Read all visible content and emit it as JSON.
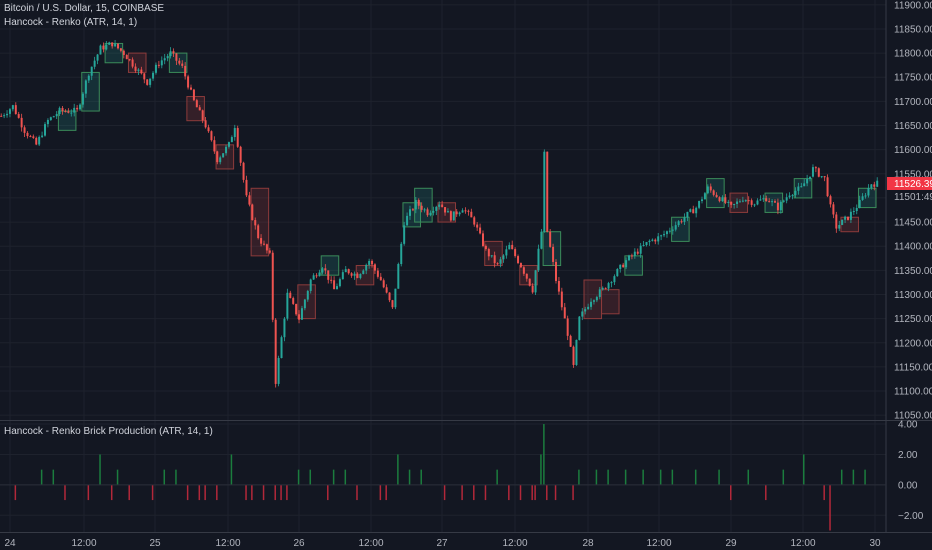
{
  "header": {
    "symbol_line": "Bitcoin / U.S. Dollar, 15, COINBASE",
    "indicator_line": "Hancock - Renko (ATR, 14, 1)"
  },
  "lower_pane": {
    "title": "Hancock - Renko Brick Production (ATR, 14, 1)"
  },
  "price_badges": {
    "last_price": "11526.39",
    "countdown": "11501:49",
    "last_price_color": "#f23645"
  },
  "colors": {
    "background": "#131722",
    "grid": "#1e222d",
    "up": "#26a69a",
    "down": "#ef5350",
    "brick_up": "#2e7d32",
    "brick_down": "#b71c1c",
    "hist_up": "#1b7d3e",
    "hist_down": "#b2283a"
  },
  "chart_data": [
    {
      "type": "candlestick",
      "title": "Bitcoin / U.S. Dollar, 15, COINBASE",
      "x_ticks": [
        "24",
        "12:00",
        "25",
        "12:00",
        "26",
        "12:00",
        "27",
        "12:00",
        "28",
        "12:00",
        "29",
        "12:00",
        "30"
      ],
      "y_ticks": [
        "11900.00",
        "11850.00",
        "11800.00",
        "11750.00",
        "11700.00",
        "11650.00",
        "11600.00",
        "11550.00",
        "11500.00",
        "11450.00",
        "11400.00",
        "11350.00",
        "11300.00",
        "11250.00",
        "11200.00",
        "11150.00",
        "11100.00",
        "11050.00"
      ],
      "ylim": [
        11040,
        11910
      ],
      "grid": true,
      "price_path": [
        [
          0,
          11670
        ],
        [
          4,
          11690
        ],
        [
          8,
          11640
        ],
        [
          12,
          11610
        ],
        [
          16,
          11660
        ],
        [
          20,
          11680
        ],
        [
          26,
          11680
        ],
        [
          30,
          11760
        ],
        [
          34,
          11810
        ],
        [
          38,
          11820
        ],
        [
          42,
          11800
        ],
        [
          46,
          11770
        ],
        [
          50,
          11740
        ],
        [
          54,
          11780
        ],
        [
          58,
          11800
        ],
        [
          62,
          11770
        ],
        [
          66,
          11700
        ],
        [
          70,
          11650
        ],
        [
          74,
          11580
        ],
        [
          78,
          11610
        ],
        [
          80,
          11650
        ],
        [
          84,
          11500
        ],
        [
          88,
          11420
        ],
        [
          92,
          11380
        ],
        [
          94,
          11120
        ],
        [
          98,
          11300
        ],
        [
          102,
          11250
        ],
        [
          106,
          11330
        ],
        [
          110,
          11360
        ],
        [
          114,
          11310
        ],
        [
          118,
          11350
        ],
        [
          122,
          11340
        ],
        [
          126,
          11370
        ],
        [
          130,
          11330
        ],
        [
          134,
          11270
        ],
        [
          138,
          11450
        ],
        [
          142,
          11490
        ],
        [
          146,
          11470
        ],
        [
          150,
          11490
        ],
        [
          154,
          11460
        ],
        [
          158,
          11480
        ],
        [
          162,
          11450
        ],
        [
          166,
          11390
        ],
        [
          170,
          11360
        ],
        [
          174,
          11400
        ],
        [
          178,
          11360
        ],
        [
          182,
          11310
        ],
        [
          185,
          11430
        ],
        [
          186,
          11590
        ],
        [
          187,
          11430
        ],
        [
          190,
          11330
        ],
        [
          194,
          11220
        ],
        [
          196,
          11150
        ],
        [
          198,
          11250
        ],
        [
          202,
          11290
        ],
        [
          206,
          11310
        ],
        [
          210,
          11340
        ],
        [
          214,
          11370
        ],
        [
          218,
          11390
        ],
        [
          222,
          11410
        ],
        [
          226,
          11420
        ],
        [
          230,
          11440
        ],
        [
          234,
          11460
        ],
        [
          238,
          11480
        ],
        [
          242,
          11520
        ],
        [
          246,
          11500
        ],
        [
          250,
          11480
        ],
        [
          254,
          11500
        ],
        [
          258,
          11490
        ],
        [
          262,
          11500
        ],
        [
          266,
          11480
        ],
        [
          270,
          11510
        ],
        [
          274,
          11520
        ],
        [
          278,
          11560
        ],
        [
          282,
          11540
        ],
        [
          284,
          11480
        ],
        [
          286,
          11440
        ],
        [
          290,
          11460
        ],
        [
          294,
          11490
        ],
        [
          298,
          11530
        ],
        [
          300,
          11530
        ]
      ],
      "bricks": [
        [
          20,
          11640,
          11680
        ],
        [
          28,
          11680,
          11760
        ],
        [
          36,
          11780,
          11820
        ],
        [
          44,
          11760,
          11800
        ],
        [
          58,
          11760,
          11800
        ],
        [
          64,
          11660,
          11710
        ],
        [
          74,
          11560,
          11610
        ],
        [
          86,
          11380,
          11520
        ],
        [
          102,
          11250,
          11320
        ],
        [
          110,
          11340,
          11380
        ],
        [
          122,
          11320,
          11360
        ],
        [
          138,
          11440,
          11490
        ],
        [
          142,
          11450,
          11520
        ],
        [
          150,
          11450,
          11490
        ],
        [
          166,
          11360,
          11410
        ],
        [
          178,
          11320,
          11360
        ],
        [
          186,
          11360,
          11430
        ],
        [
          200,
          11250,
          11330
        ],
        [
          206,
          11260,
          11310
        ],
        [
          214,
          11340,
          11380
        ],
        [
          230,
          11410,
          11460
        ],
        [
          242,
          11480,
          11540
        ],
        [
          250,
          11470,
          11510
        ],
        [
          262,
          11470,
          11510
        ],
        [
          272,
          11500,
          11540
        ],
        [
          288,
          11430,
          11460
        ],
        [
          294,
          11480,
          11520
        ]
      ]
    },
    {
      "type": "bar",
      "title": "Hancock - Renko Brick Production (ATR, 14, 1)",
      "y_ticks": [
        "4.00",
        "2.00",
        "0.00",
        "−2.00"
      ],
      "ylim": [
        -3.1,
        4.2
      ],
      "values": [
        [
          5,
          -1
        ],
        [
          14,
          1
        ],
        [
          18,
          1
        ],
        [
          22,
          -1
        ],
        [
          30,
          -1
        ],
        [
          34,
          2
        ],
        [
          38,
          -1
        ],
        [
          40,
          1
        ],
        [
          44,
          -1
        ],
        [
          52,
          -1
        ],
        [
          56,
          1
        ],
        [
          60,
          1
        ],
        [
          64,
          -1
        ],
        [
          68,
          -1
        ],
        [
          70,
          -1
        ],
        [
          74,
          -1
        ],
        [
          79,
          2
        ],
        [
          84,
          -1
        ],
        [
          86,
          -1
        ],
        [
          90,
          -1
        ],
        [
          94,
          -1
        ],
        [
          96,
          -1
        ],
        [
          98,
          -1
        ],
        [
          102,
          1
        ],
        [
          106,
          1
        ],
        [
          112,
          -1
        ],
        [
          114,
          1
        ],
        [
          118,
          1
        ],
        [
          122,
          -1
        ],
        [
          130,
          -1
        ],
        [
          132,
          -1
        ],
        [
          136,
          2
        ],
        [
          140,
          1
        ],
        [
          144,
          1
        ],
        [
          152,
          -1
        ],
        [
          158,
          -1
        ],
        [
          162,
          -1
        ],
        [
          166,
          -1
        ],
        [
          170,
          1
        ],
        [
          174,
          -1
        ],
        [
          178,
          -1
        ],
        [
          182,
          -1
        ],
        [
          183,
          -1
        ],
        [
          185,
          2
        ],
        [
          186,
          4
        ],
        [
          187,
          -1
        ],
        [
          190,
          -1
        ],
        [
          196,
          -1
        ],
        [
          198,
          1
        ],
        [
          204,
          1
        ],
        [
          208,
          1
        ],
        [
          214,
          1
        ],
        [
          220,
          1
        ],
        [
          226,
          1
        ],
        [
          230,
          1
        ],
        [
          238,
          1
        ],
        [
          246,
          1
        ],
        [
          250,
          -1
        ],
        [
          256,
          1
        ],
        [
          262,
          -1
        ],
        [
          268,
          1
        ],
        [
          275,
          2
        ],
        [
          282,
          -1
        ],
        [
          284,
          -3
        ],
        [
          288,
          1
        ],
        [
          292,
          1
        ],
        [
          296,
          1
        ]
      ]
    }
  ]
}
